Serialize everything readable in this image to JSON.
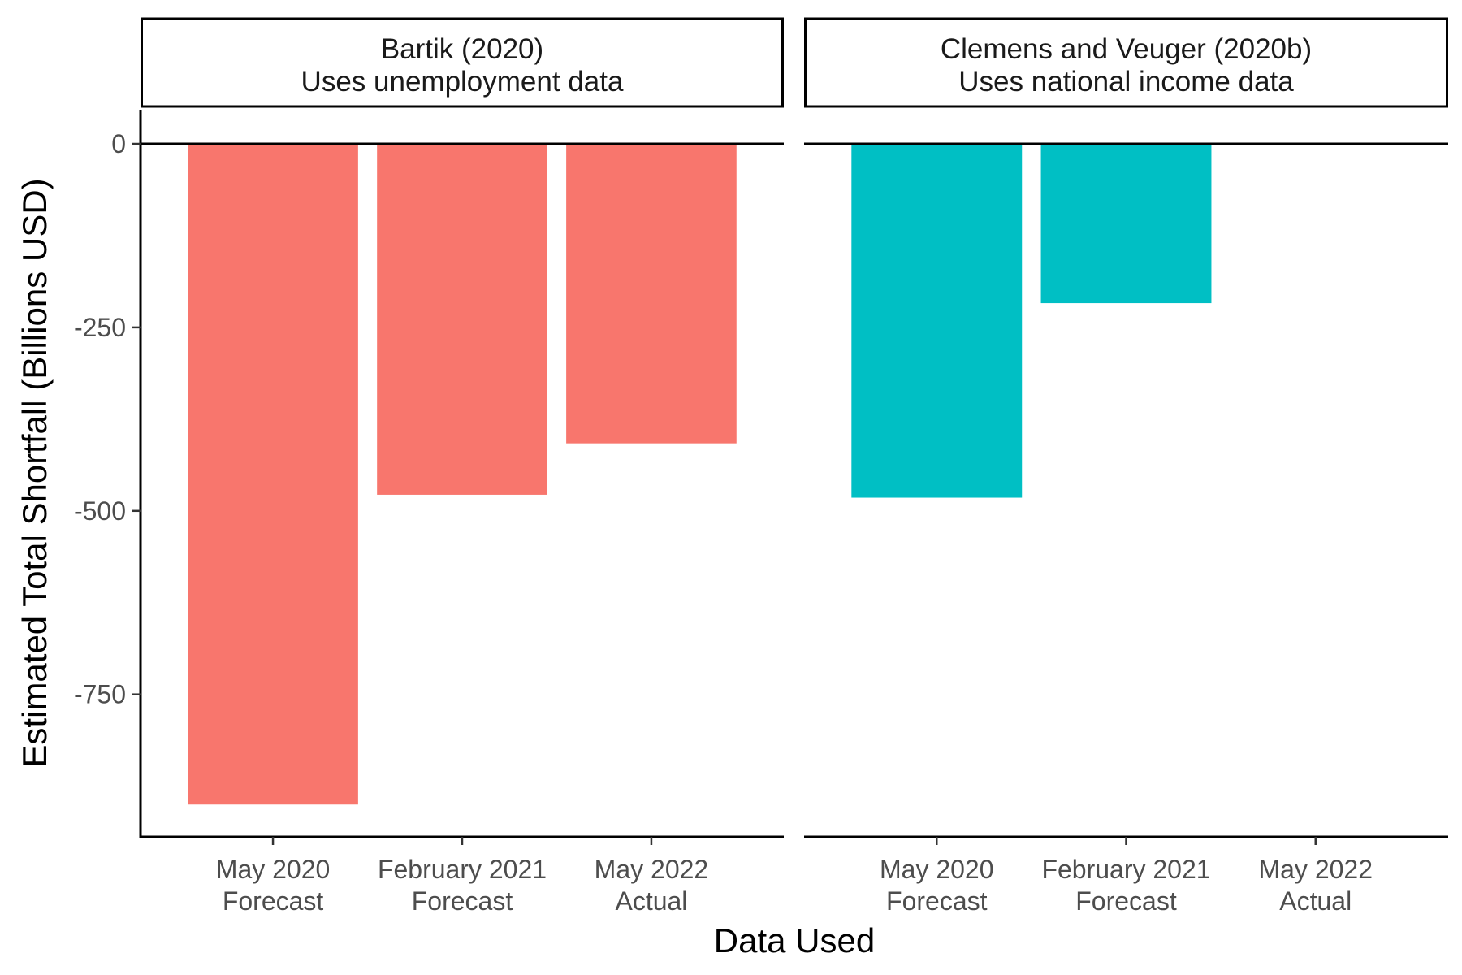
{
  "chart_data": {
    "type": "bar",
    "xlabel": "Data Used",
    "ylabel": "Estimated Total Shortfall (Billions USD)",
    "ylim": [
      -950,
      0
    ],
    "yticks": [
      0,
      -250,
      -500,
      -750
    ],
    "ytick_labels": [
      "0",
      "-250",
      "-500",
      "-750"
    ],
    "categories": [
      [
        "May 2020",
        "Forecast"
      ],
      [
        "February 2021",
        "Forecast"
      ],
      [
        "May 2022",
        "Actual"
      ]
    ],
    "grid": false,
    "legend": "none",
    "facets": [
      {
        "strip": [
          "Bartik (2020)",
          "Uses unemployment data"
        ],
        "color": "#F8766D",
        "values": [
          -900,
          -478,
          -408
        ]
      },
      {
        "strip": [
          "Clemens and Veuger (2020b)",
          "Uses national income data"
        ],
        "color": "#00BFC4",
        "values": [
          -482,
          -217,
          null
        ]
      }
    ]
  }
}
